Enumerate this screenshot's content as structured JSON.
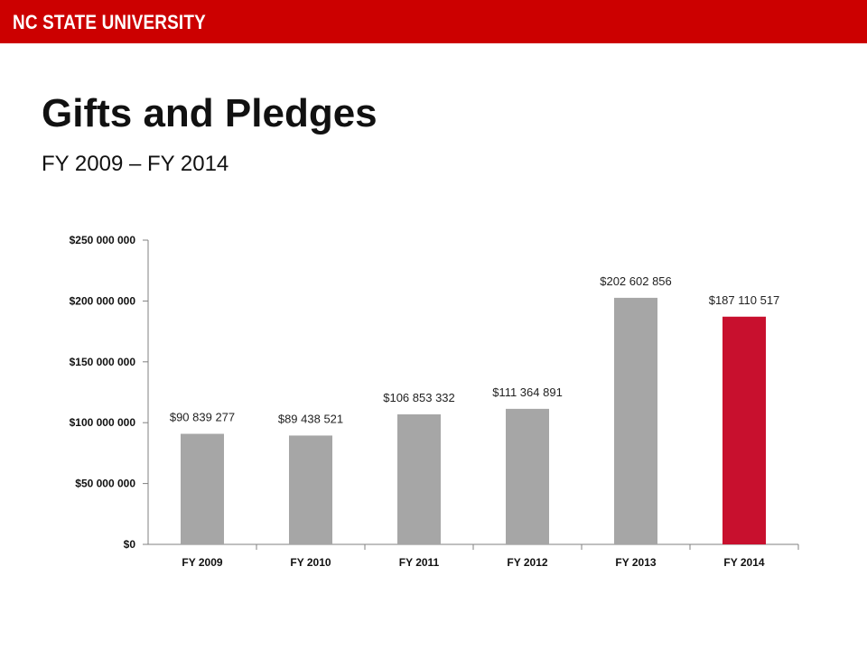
{
  "header": {
    "brand": "NC STATE UNIVERSITY",
    "brand_color": "#cc0000"
  },
  "page": {
    "title": "Gifts and Pledges",
    "subtitle": "FY 2009 – FY 2014"
  },
  "chart_data": {
    "type": "bar",
    "categories": [
      "FY 2009",
      "FY 2010",
      "FY 2011",
      "FY 2012",
      "FY 2013",
      "FY 2014"
    ],
    "values": [
      90839277,
      89438521,
      106853332,
      111364891,
      202602856,
      187110517
    ],
    "data_labels": [
      "$90 839 277",
      "$89 438 521",
      "$106 853 332",
      "$111 364 891",
      "$202 602 856",
      "$187 110 517"
    ],
    "bar_colors": [
      "#a6a6a6",
      "#a6a6a6",
      "#a6a6a6",
      "#a6a6a6",
      "#a6a6a6",
      "#c8102e"
    ],
    "ylim": [
      0,
      250000000
    ],
    "yticks": [
      0,
      50000000,
      100000000,
      150000000,
      200000000,
      250000000
    ],
    "ytick_labels": [
      "$0",
      "$50 000 000",
      "$100 000 000",
      "$150 000 000",
      "$200 000 000",
      "$250 000 000"
    ],
    "grid": false,
    "legend": "none"
  }
}
